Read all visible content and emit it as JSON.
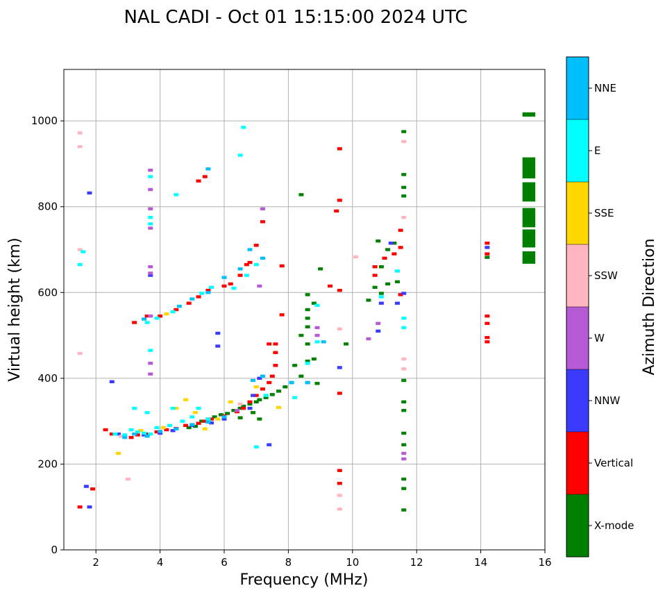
{
  "chart_data": {
    "type": "scatter",
    "title": "NAL CADI - Oct 01 15:15:00 2024 UTC",
    "xlabel": "Frequency (MHz)",
    "ylabel": "Virtual height (km)",
    "xlim": [
      1,
      16
    ],
    "ylim": [
      0,
      1120
    ],
    "xticks": [
      2,
      4,
      6,
      8,
      10,
      12,
      14,
      16
    ],
    "yticks": [
      0,
      200,
      400,
      600,
      800,
      1000
    ],
    "grid": true,
    "colorbar": {
      "title": "Azimuth Direction",
      "categories": [
        {
          "name": "X-mode",
          "color": "#008000"
        },
        {
          "name": "Vertical",
          "color": "#ff0000"
        },
        {
          "name": "NNW",
          "color": "#3b3bff"
        },
        {
          "name": "W",
          "color": "#b65bd6"
        },
        {
          "name": "SSW",
          "color": "#ffb6c1"
        },
        {
          "name": "SSE",
          "color": "#ffd700"
        },
        {
          "name": "E",
          "color": "#00ffff"
        },
        {
          "name": "NNE",
          "color": "#00bfff"
        }
      ]
    },
    "series": [
      {
        "name": "X-mode",
        "points": [
          [
            4.9,
            285
          ],
          [
            5.0,
            290
          ],
          [
            5.1,
            288
          ],
          [
            5.3,
            300
          ],
          [
            5.5,
            305
          ],
          [
            5.7,
            310
          ],
          [
            5.9,
            315
          ],
          [
            6.1,
            318
          ],
          [
            6.3,
            325
          ],
          [
            6.5,
            330
          ],
          [
            6.6,
            335
          ],
          [
            6.8,
            340
          ],
          [
            7.0,
            345
          ],
          [
            7.1,
            350
          ],
          [
            7.3,
            355
          ],
          [
            7.5,
            362
          ],
          [
            7.7,
            370
          ],
          [
            7.9,
            380
          ],
          [
            8.1,
            390
          ],
          [
            8.4,
            405
          ],
          [
            8.6,
            390
          ],
          [
            8.9,
            388
          ],
          [
            8.2,
            430
          ],
          [
            8.6,
            440
          ],
          [
            8.8,
            445
          ],
          [
            8.6,
            480
          ],
          [
            8.4,
            500
          ],
          [
            8.6,
            520
          ],
          [
            8.6,
            540
          ],
          [
            8.6,
            560
          ],
          [
            8.8,
            575
          ],
          [
            8.6,
            595
          ],
          [
            9.0,
            655
          ],
          [
            8.4,
            828
          ],
          [
            9.8,
            480
          ],
          [
            10.5,
            582
          ],
          [
            10.7,
            612
          ],
          [
            10.9,
            598
          ],
          [
            11.1,
            620
          ],
          [
            11.4,
            625
          ],
          [
            10.9,
            660
          ],
          [
            11.1,
            700
          ],
          [
            11.3,
            715
          ],
          [
            10.8,
            720
          ],
          [
            11.6,
            975
          ],
          [
            11.6,
            875
          ],
          [
            11.6,
            845
          ],
          [
            11.6,
            825
          ],
          [
            11.6,
            395
          ],
          [
            11.6,
            345
          ],
          [
            11.6,
            325
          ],
          [
            11.6,
            272
          ],
          [
            11.6,
            245
          ],
          [
            11.6,
            165
          ],
          [
            11.6,
            143
          ],
          [
            11.6,
            93
          ],
          [
            14.2,
            682
          ],
          [
            6.9,
            320
          ],
          [
            7.1,
            305
          ],
          [
            6.5,
            308
          ]
        ]
      },
      {
        "name": "Vertical",
        "points": [
          [
            2.3,
            280
          ],
          [
            2.5,
            270
          ],
          [
            2.8,
            265
          ],
          [
            3.1,
            262
          ],
          [
            3.3,
            268
          ],
          [
            3.6,
            270
          ],
          [
            3.9,
            275
          ],
          [
            4.2,
            280
          ],
          [
            4.5,
            283
          ],
          [
            4.8,
            290
          ],
          [
            5.2,
            295
          ],
          [
            5.4,
            300
          ],
          [
            5.6,
            305
          ],
          [
            6.0,
            312
          ],
          [
            6.4,
            322
          ],
          [
            6.6,
            330
          ],
          [
            6.8,
            345
          ],
          [
            7.0,
            360
          ],
          [
            7.2,
            375
          ],
          [
            7.4,
            390
          ],
          [
            7.5,
            405
          ],
          [
            7.6,
            430
          ],
          [
            7.6,
            460
          ],
          [
            7.6,
            480
          ],
          [
            7.8,
            548
          ],
          [
            3.2,
            530
          ],
          [
            3.6,
            545
          ],
          [
            4.0,
            545
          ],
          [
            4.5,
            560
          ],
          [
            4.9,
            575
          ],
          [
            5.2,
            590
          ],
          [
            5.5,
            605
          ],
          [
            6.0,
            615
          ],
          [
            6.5,
            640
          ],
          [
            6.8,
            670
          ],
          [
            7.0,
            710
          ],
          [
            7.2,
            765
          ],
          [
            6.2,
            620
          ],
          [
            6.7,
            665
          ],
          [
            5.4,
            870
          ],
          [
            5.2,
            860
          ],
          [
            9.6,
            935
          ],
          [
            9.6,
            815
          ],
          [
            9.6,
            605
          ],
          [
            9.6,
            365
          ],
          [
            9.6,
            185
          ],
          [
            9.6,
            155
          ],
          [
            9.3,
            615
          ],
          [
            9.5,
            790
          ],
          [
            10.7,
            640
          ],
          [
            11.0,
            680
          ],
          [
            11.3,
            690
          ],
          [
            11.5,
            745
          ],
          [
            11.5,
            705
          ],
          [
            11.5,
            595
          ],
          [
            14.2,
            715
          ],
          [
            14.2,
            690
          ],
          [
            14.2,
            545
          ],
          [
            14.2,
            528
          ],
          [
            14.2,
            495
          ],
          [
            14.2,
            485
          ],
          [
            1.9,
            142
          ],
          [
            1.5,
            100
          ],
          [
            7.8,
            662
          ],
          [
            7.4,
            480
          ],
          [
            10.7,
            660
          ]
        ]
      },
      {
        "name": "NNW",
        "points": [
          [
            1.8,
            832
          ],
          [
            2.5,
            392
          ],
          [
            2.7,
            270
          ],
          [
            3.5,
            268
          ],
          [
            4.0,
            272
          ],
          [
            4.4,
            278
          ],
          [
            5.0,
            290
          ],
          [
            5.6,
            296
          ],
          [
            6.0,
            305
          ],
          [
            6.8,
            330
          ],
          [
            7.4,
            245
          ],
          [
            7.1,
            400
          ],
          [
            6.9,
            360
          ],
          [
            10.9,
            575
          ],
          [
            11.4,
            575
          ],
          [
            11.6,
            598
          ],
          [
            14.2,
            705
          ],
          [
            9.6,
            425
          ],
          [
            1.7,
            148
          ],
          [
            1.8,
            100
          ],
          [
            3.7,
            640
          ],
          [
            5.8,
            475
          ],
          [
            5.8,
            505
          ],
          [
            10.8,
            510
          ],
          [
            11.2,
            715
          ]
        ]
      },
      {
        "name": "W",
        "points": [
          [
            3.7,
            885
          ],
          [
            3.7,
            840
          ],
          [
            3.7,
            795
          ],
          [
            3.7,
            750
          ],
          [
            3.7,
            660
          ],
          [
            3.7,
            645
          ],
          [
            3.7,
            435
          ],
          [
            3.7,
            410
          ],
          [
            3.7,
            545
          ],
          [
            7.2,
            795
          ],
          [
            7.1,
            615
          ],
          [
            8.9,
            518
          ],
          [
            8.9,
            500
          ],
          [
            10.5,
            492
          ],
          [
            10.8,
            528
          ],
          [
            11.6,
            225
          ],
          [
            11.6,
            212
          ],
          [
            6.4,
            325
          ]
        ]
      },
      {
        "name": "SSW",
        "points": [
          [
            1.5,
            972
          ],
          [
            1.5,
            940
          ],
          [
            1.5,
            700
          ],
          [
            1.5,
            458
          ],
          [
            3.0,
            165
          ],
          [
            11.6,
            952
          ],
          [
            11.6,
            775
          ],
          [
            11.6,
            445
          ],
          [
            11.6,
            422
          ],
          [
            9.6,
            515
          ],
          [
            9.6,
            127
          ],
          [
            9.6,
            95
          ],
          [
            10.1,
            683
          ],
          [
            2.8,
            265
          ],
          [
            6.5,
            340
          ]
        ]
      },
      {
        "name": "SSE",
        "points": [
          [
            2.7,
            225
          ],
          [
            3.4,
            278
          ],
          [
            4.1,
            285
          ],
          [
            4.5,
            330
          ],
          [
            4.8,
            350
          ],
          [
            5.1,
            320
          ],
          [
            5.4,
            282
          ],
          [
            5.8,
            305
          ],
          [
            4.2,
            550
          ],
          [
            6.2,
            345
          ],
          [
            7.0,
            380
          ],
          [
            7.7,
            332
          ]
        ]
      },
      {
        "name": "E",
        "points": [
          [
            2.6,
            270
          ],
          [
            2.9,
            268
          ],
          [
            3.1,
            280
          ],
          [
            3.3,
            275
          ],
          [
            3.5,
            272
          ],
          [
            3.7,
            270
          ],
          [
            3.9,
            285
          ],
          [
            4.3,
            290
          ],
          [
            4.7,
            300
          ],
          [
            5.0,
            310
          ],
          [
            5.5,
            305
          ],
          [
            3.2,
            330
          ],
          [
            3.6,
            320
          ],
          [
            4.4,
            330
          ],
          [
            3.6,
            530
          ],
          [
            3.9,
            540
          ],
          [
            4.4,
            555
          ],
          [
            5.3,
            598
          ],
          [
            5.6,
            612
          ],
          [
            6.3,
            610
          ],
          [
            6.7,
            640
          ],
          [
            7.0,
            665
          ],
          [
            6.6,
            985
          ],
          [
            6.5,
            920
          ],
          [
            3.7,
            775
          ],
          [
            3.7,
            760
          ],
          [
            3.7,
            465
          ],
          [
            3.7,
            870
          ],
          [
            4.5,
            828
          ],
          [
            8.2,
            355
          ],
          [
            8.6,
            435
          ],
          [
            8.9,
            485
          ],
          [
            11.6,
            540
          ],
          [
            11.6,
            518
          ],
          [
            11.4,
            650
          ],
          [
            1.6,
            695
          ],
          [
            1.5,
            665
          ],
          [
            7.0,
            240
          ],
          [
            7.3,
            360
          ],
          [
            5.2,
            330
          ],
          [
            8.9,
            570
          ],
          [
            10.9,
            590
          ]
        ]
      },
      {
        "name": "NNE",
        "points": [
          [
            2.9,
            262
          ],
          [
            3.2,
            270
          ],
          [
            3.6,
            265
          ],
          [
            4.0,
            276
          ],
          [
            4.5,
            282
          ],
          [
            5.0,
            292
          ],
          [
            5.5,
            298
          ],
          [
            6.0,
            310
          ],
          [
            3.5,
            538
          ],
          [
            4.6,
            568
          ],
          [
            5.0,
            585
          ],
          [
            5.5,
            600
          ],
          [
            6.0,
            635
          ],
          [
            6.5,
            655
          ],
          [
            6.8,
            700
          ],
          [
            7.2,
            680
          ],
          [
            5.5,
            888
          ],
          [
            6.9,
            395
          ],
          [
            7.2,
            405
          ],
          [
            8.1,
            390
          ],
          [
            8.6,
            390
          ],
          [
            9.1,
            485
          ]
        ]
      }
    ],
    "x_mode_blocks": [
      {
        "x": [
          15.3,
          15.7
        ],
        "y": [
          1010,
          1020
        ]
      },
      {
        "x": [
          15.3,
          15.7
        ],
        "y": [
          866,
          915
        ]
      },
      {
        "x": [
          15.3,
          15.7
        ],
        "y": [
          812,
          857
        ]
      },
      {
        "x": [
          15.3,
          15.7
        ],
        "y": [
          752,
          797
        ]
      },
      {
        "x": [
          15.3,
          15.7
        ],
        "y": [
          705,
          747
        ]
      },
      {
        "x": [
          15.3,
          15.7
        ],
        "y": [
          667,
          696
        ]
      }
    ]
  }
}
